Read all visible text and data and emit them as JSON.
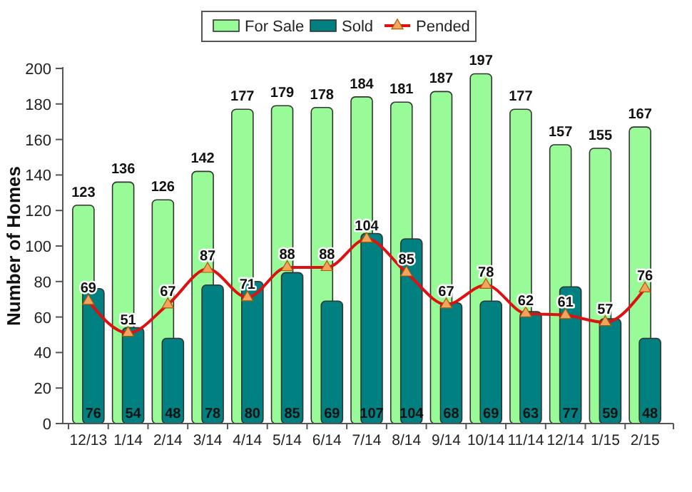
{
  "chart_data": {
    "type": "bar",
    "ylabel": "Number of Homes",
    "categories": [
      "12/13",
      "1/14",
      "2/14",
      "3/14",
      "4/14",
      "5/14",
      "6/14",
      "7/14",
      "8/14",
      "9/14",
      "10/14",
      "11/14",
      "12/14",
      "1/15",
      "2/15"
    ],
    "series": [
      {
        "name": "For Sale",
        "color": "#98fb98",
        "values": [
          123,
          136,
          126,
          142,
          177,
          179,
          178,
          184,
          181,
          187,
          197,
          177,
          157,
          155,
          167
        ]
      },
      {
        "name": "Sold",
        "color": "#008080",
        "values": [
          76,
          54,
          48,
          78,
          80,
          85,
          69,
          107,
          104,
          68,
          69,
          63,
          77,
          59,
          48
        ]
      },
      {
        "name": "Pended",
        "type": "line",
        "color": "#dd1111",
        "marker": "triangle",
        "values": [
          69,
          51,
          67,
          87,
          71,
          88,
          88,
          104,
          85,
          67,
          78,
          62,
          61,
          57,
          76
        ]
      }
    ],
    "ylim": [
      0,
      200
    ],
    "yticks": [
      0,
      20,
      40,
      60,
      80,
      100,
      120,
      140,
      160,
      180,
      200
    ],
    "grid": false,
    "legend": "top",
    "data_labels": true
  }
}
